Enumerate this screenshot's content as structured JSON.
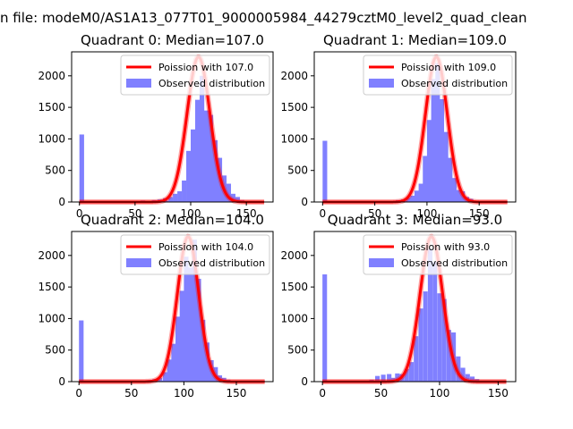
{
  "figure": {
    "suptitle": "n file: modeM0/AS1A13_077T01_9000005984_44279cztM0_level2_quad_clean"
  },
  "chart_data": [
    {
      "type": "bar",
      "title": "Quadrant 0: Median=107.0",
      "xlim": [
        -7,
        174
      ],
      "ylim": [
        0,
        2380
      ],
      "xticks": [
        0,
        50,
        100,
        150
      ],
      "yticks": [
        0,
        500,
        1000,
        1500,
        2000
      ],
      "legend": [
        "Poission with 107.0",
        "Observed distribution"
      ],
      "legend_position": "upper right",
      "poisson_mean": 107.0,
      "poisson_peak": 2300,
      "bin_width": 4.2,
      "bins": [
        [
          0,
          1070
        ],
        [
          55,
          25
        ],
        [
          60,
          20
        ],
        [
          65,
          30
        ],
        [
          70,
          40
        ],
        [
          75,
          60
        ],
        [
          80,
          80
        ],
        [
          84,
          130
        ],
        [
          88,
          170
        ],
        [
          92,
          340
        ],
        [
          96,
          810
        ],
        [
          100,
          1150
        ],
        [
          104,
          1620
        ],
        [
          108,
          2000
        ],
        [
          112,
          1450
        ],
        [
          116,
          1380
        ],
        [
          120,
          980
        ],
        [
          124,
          700
        ],
        [
          128,
          420
        ],
        [
          132,
          290
        ],
        [
          136,
          130
        ],
        [
          140,
          80
        ],
        [
          144,
          30
        ],
        [
          148,
          15
        ]
      ],
      "line_color": "#ff0000",
      "bar_color": "#8080ff"
    },
    {
      "type": "bar",
      "title": "Quadrant 1: Median=109.0",
      "xlim": [
        -8,
        185
      ],
      "ylim": [
        0,
        2380
      ],
      "xticks": [
        0,
        50,
        100,
        150
      ],
      "yticks": [
        0,
        500,
        1000,
        1500,
        2000
      ],
      "legend": [
        "Poission with 109.0",
        "Observed distribution"
      ],
      "legend_position": "upper right",
      "poisson_mean": 109.0,
      "poisson_peak": 2300,
      "bin_width": 4.4,
      "bins": [
        [
          0,
          970
        ],
        [
          65,
          20
        ],
        [
          70,
          30
        ],
        [
          75,
          40
        ],
        [
          80,
          70
        ],
        [
          84,
          100
        ],
        [
          88,
          180
        ],
        [
          92,
          290
        ],
        [
          96,
          730
        ],
        [
          100,
          1300
        ],
        [
          104,
          1950
        ],
        [
          108,
          2200
        ],
        [
          112,
          1630
        ],
        [
          116,
          1110
        ],
        [
          120,
          700
        ],
        [
          124,
          380
        ],
        [
          128,
          190
        ],
        [
          132,
          170
        ],
        [
          136,
          80
        ],
        [
          140,
          50
        ],
        [
          145,
          20
        ]
      ],
      "line_color": "#ff0000",
      "bar_color": "#8080ff"
    },
    {
      "type": "bar",
      "title": "Quadrant 2: Median=104.0",
      "xlim": [
        -7,
        185
      ],
      "ylim": [
        0,
        2380
      ],
      "xticks": [
        0,
        50,
        100,
        150
      ],
      "yticks": [
        0,
        500,
        1000,
        1500,
        2000
      ],
      "legend": [
        "Poission with 104.0",
        "Observed distribution"
      ],
      "legend_position": "upper right",
      "poisson_mean": 104.0,
      "poisson_peak": 2300,
      "bin_width": 4.4,
      "bins": [
        [
          0,
          970
        ],
        [
          60,
          20
        ],
        [
          65,
          25
        ],
        [
          70,
          40
        ],
        [
          75,
          60
        ],
        [
          80,
          150
        ],
        [
          84,
          350
        ],
        [
          88,
          600
        ],
        [
          92,
          1030
        ],
        [
          96,
          1440
        ],
        [
          100,
          1980
        ],
        [
          104,
          1810
        ],
        [
          108,
          2250
        ],
        [
          112,
          1630
        ],
        [
          116,
          980
        ],
        [
          120,
          620
        ],
        [
          124,
          340
        ],
        [
          128,
          230
        ],
        [
          132,
          100
        ],
        [
          136,
          60
        ],
        [
          140,
          30
        ],
        [
          145,
          15
        ]
      ],
      "line_color": "#ff0000",
      "bar_color": "#8080ff"
    },
    {
      "type": "bar",
      "title": "Quadrant 3: Median=93.0",
      "xlim": [
        -7,
        165
      ],
      "ylim": [
        0,
        2380
      ],
      "xticks": [
        0,
        50,
        100,
        150
      ],
      "yticks": [
        0,
        500,
        1000,
        1500,
        2000
      ],
      "legend": [
        "Poission with 93.0",
        "Observed distribution"
      ],
      "legend_position": "upper right",
      "poisson_mean": 93.0,
      "poisson_peak": 2300,
      "bin_width": 3.9,
      "bins": [
        [
          0,
          1700
        ],
        [
          35,
          20
        ],
        [
          40,
          30
        ],
        [
          45,
          90
        ],
        [
          50,
          110
        ],
        [
          55,
          120
        ],
        [
          58,
          60
        ],
        [
          62,
          130
        ],
        [
          66,
          120
        ],
        [
          70,
          200
        ],
        [
          74,
          310
        ],
        [
          78,
          720
        ],
        [
          82,
          1160
        ],
        [
          86,
          1430
        ],
        [
          90,
          2100
        ],
        [
          94,
          1900
        ],
        [
          98,
          1400
        ],
        [
          102,
          1310
        ],
        [
          106,
          820
        ],
        [
          110,
          780
        ],
        [
          114,
          400
        ],
        [
          118,
          220
        ],
        [
          122,
          120
        ],
        [
          126,
          80
        ],
        [
          130,
          40
        ],
        [
          135,
          20
        ]
      ],
      "line_color": "#ff0000",
      "bar_color": "#8080ff"
    }
  ]
}
